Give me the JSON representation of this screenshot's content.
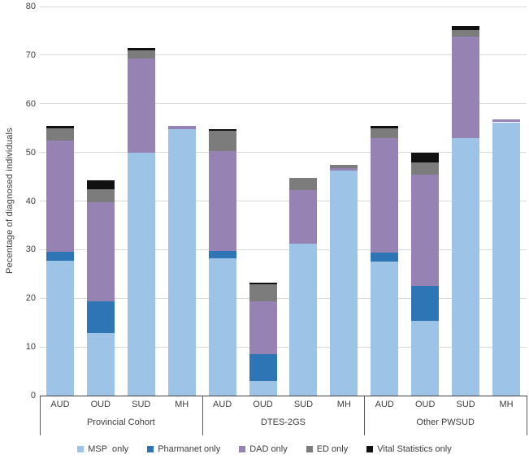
{
  "chart_data": {
    "type": "bar",
    "stacked": true,
    "title": "",
    "xlabel": "",
    "ylabel": "Pecentage of diagnosed individuals",
    "ylim": [
      0,
      80
    ],
    "ytick_step": 10,
    "yticks": [
      0,
      10,
      20,
      30,
      40,
      50,
      60,
      70,
      80
    ],
    "grid": true,
    "legend_position": "bottom",
    "colors": {
      "gridline": "#d9d9d9",
      "axis": "#404040",
      "text": "#3d3d3d"
    },
    "series": [
      {
        "name": "MSP  only",
        "color": "#9DC3E6"
      },
      {
        "name": "Pharmanet only",
        "color": "#2E75B6"
      },
      {
        "name": "DAD only",
        "color": "#9683B4"
      },
      {
        "name": "ED only",
        "color": "#7C7C7C"
      },
      {
        "name": "Vital Statistics only",
        "color": "#111111"
      }
    ],
    "groups": [
      {
        "label": "Provincial Cohort",
        "bars": [
          {
            "category": "AUD",
            "values": [
              27.8,
              1.7,
              23.0,
              2.5,
              0.5
            ]
          },
          {
            "category": "OUD",
            "values": [
              12.8,
              6.5,
              20.4,
              2.7,
              1.9
            ]
          },
          {
            "category": "SUD",
            "values": [
              49.9,
              0,
              19.4,
              1.6,
              0.6
            ]
          },
          {
            "category": "MH",
            "values": [
              54.8,
              0,
              0.7,
              0,
              0
            ]
          }
        ]
      },
      {
        "label": "DTES-2GS",
        "bars": [
          {
            "category": "AUD",
            "values": [
              28.2,
              1.6,
              20.5,
              4.2,
              0.3
            ]
          },
          {
            "category": "OUD",
            "values": [
              3.0,
              5.5,
              10.8,
              3.5,
              0.4
            ]
          },
          {
            "category": "SUD",
            "values": [
              31.2,
              0,
              11.0,
              2.6,
              0
            ]
          },
          {
            "category": "MH",
            "values": [
              46.2,
              0,
              0.5,
              0.8,
              0
            ]
          }
        ]
      },
      {
        "label": "Other PWSUD",
        "bars": [
          {
            "category": "AUD",
            "values": [
              27.5,
              1.9,
              23.5,
              2.1,
              0.5
            ]
          },
          {
            "category": "OUD",
            "values": [
              15.3,
              7.2,
              23.0,
              2.5,
              2.0
            ]
          },
          {
            "category": "SUD",
            "values": [
              53.0,
              0,
              20.8,
              1.4,
              0.8
            ]
          },
          {
            "category": "MH",
            "values": [
              56.2,
              0,
              0.6,
              0,
              0
            ]
          }
        ]
      }
    ]
  }
}
